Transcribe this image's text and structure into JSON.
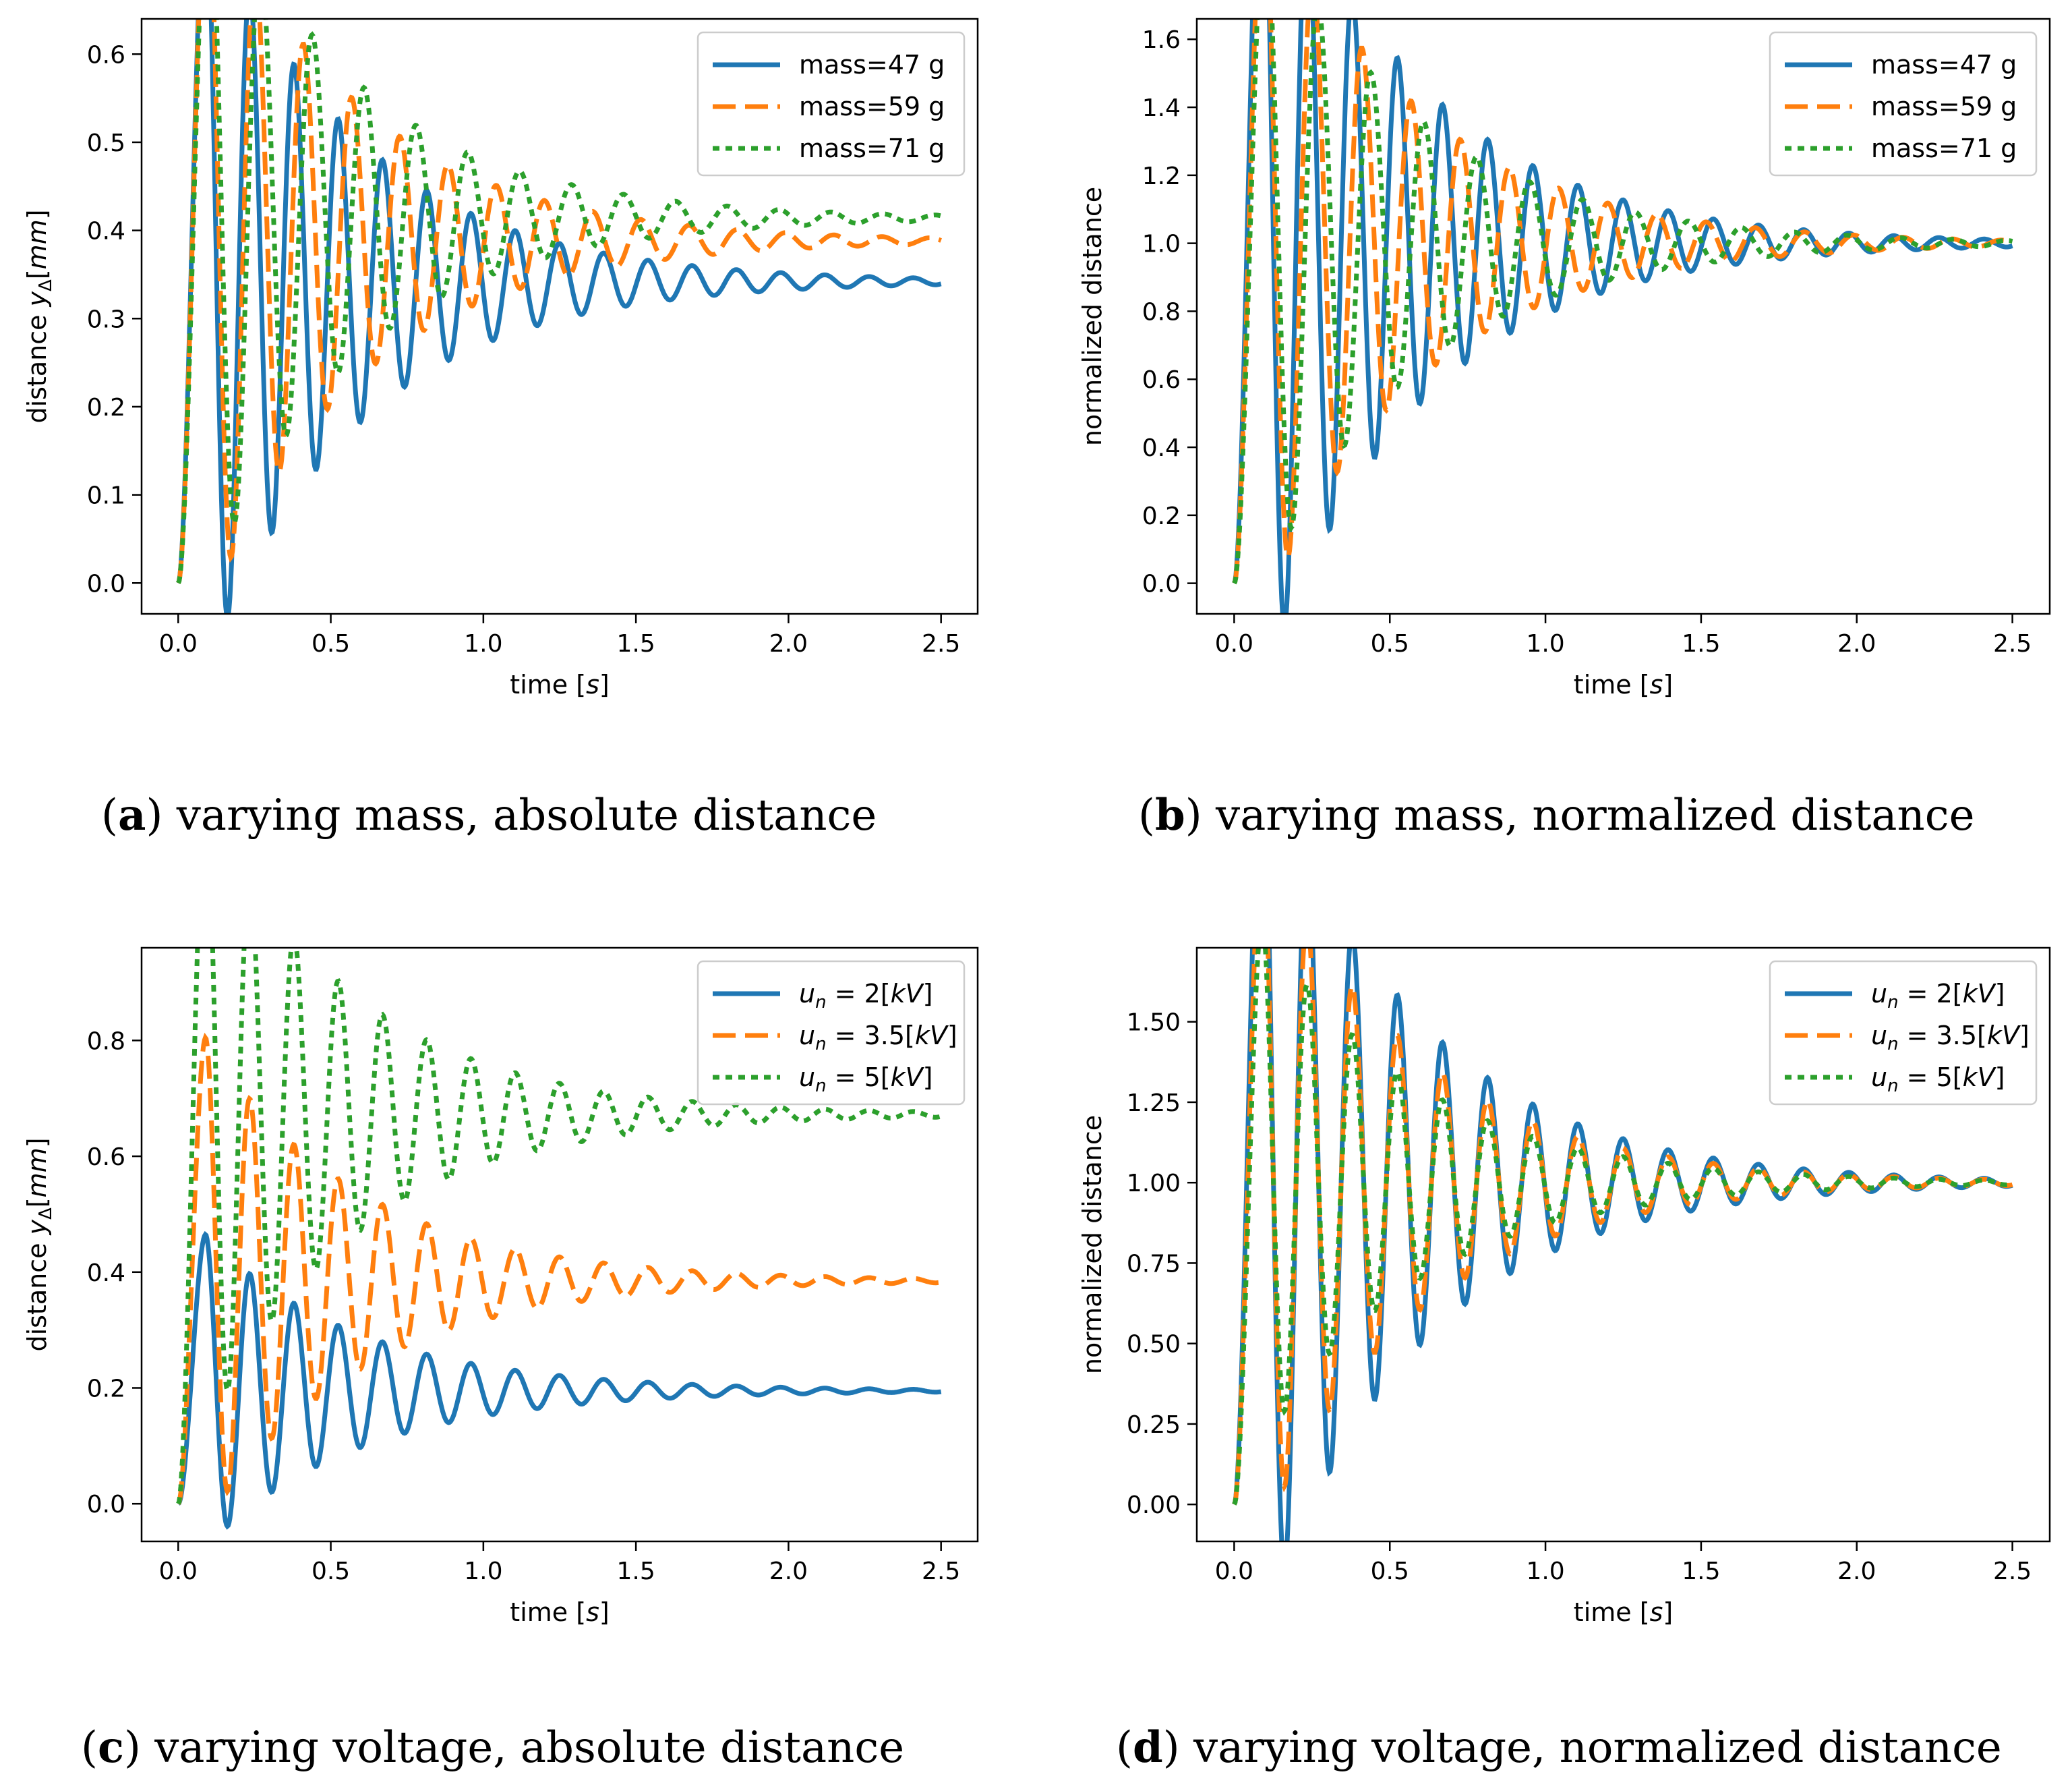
{
  "colors": {
    "blue": "#1f77b4",
    "orange": "#ff7f0e",
    "green": "#2ca02c"
  },
  "chart_data": [
    {
      "type": "line",
      "caption_letter": "a",
      "caption_text": " varying mass, absolute distance",
      "xlabel": "time [s]",
      "ylabel": "distance yΔ[mm]",
      "xlim": [
        -0.12,
        2.62
      ],
      "ylim": [
        -0.035,
        0.64
      ],
      "xticks": [
        0.0,
        0.5,
        1.0,
        1.5,
        2.0,
        2.5
      ],
      "xtick_labels": [
        "0.0",
        "0.5",
        "1.0",
        "1.5",
        "2.0",
        "2.5"
      ],
      "yticks": [
        0.0,
        0.1,
        0.2,
        0.3,
        0.4,
        0.5,
        0.6
      ],
      "ytick_labels": [
        "0.0",
        "0.1",
        "0.2",
        "0.3",
        "0.4",
        "0.5",
        "0.6"
      ],
      "legend_loc": "top-right",
      "series": [
        {
          "name": "mass=47 g",
          "color": "blue",
          "style": "solid",
          "model": {
            "final": 0.342,
            "amp": 0.44,
            "tau": 0.5,
            "period": 0.145,
            "peak": 0.09
          }
        },
        {
          "name": "mass=59 g",
          "color": "orange",
          "style": "dashed",
          "model": {
            "final": 0.388,
            "amp": 0.42,
            "tau": 0.5,
            "period": 0.158,
            "peak": 0.095
          }
        },
        {
          "name": "mass=71 g",
          "color": "green",
          "style": "dotted",
          "model": {
            "final": 0.414,
            "amp": 0.41,
            "tau": 0.5,
            "period": 0.17,
            "peak": 0.1
          }
        }
      ]
    },
    {
      "type": "line",
      "caption_letter": "b",
      "caption_text": " varying mass, normalized distance",
      "xlabel": "time [s]",
      "ylabel": "normalized distance",
      "xlim": [
        -0.12,
        2.62
      ],
      "ylim": [
        -0.09,
        1.66
      ],
      "xticks": [
        0.0,
        0.5,
        1.0,
        1.5,
        2.0,
        2.5
      ],
      "xtick_labels": [
        "0.0",
        "0.5",
        "1.0",
        "1.5",
        "2.0",
        "2.5"
      ],
      "yticks": [
        0.0,
        0.2,
        0.4,
        0.6,
        0.8,
        1.0,
        1.2,
        1.4,
        1.6
      ],
      "ytick_labels": [
        "0.0",
        "0.2",
        "0.4",
        "0.6",
        "0.8",
        "1.0",
        "1.2",
        "1.4",
        "1.6"
      ],
      "legend_loc": "top-right",
      "series": [
        {
          "name": "mass=47 g",
          "color": "blue",
          "style": "solid",
          "model": {
            "final": 1.0,
            "amp": 1.3,
            "tau": 0.5,
            "period": 0.145,
            "peak": 0.09
          }
        },
        {
          "name": "mass=59 g",
          "color": "orange",
          "style": "dashed",
          "model": {
            "final": 1.0,
            "amp": 1.08,
            "tau": 0.5,
            "period": 0.158,
            "peak": 0.095
          }
        },
        {
          "name": "mass=71 g",
          "color": "green",
          "style": "dotted",
          "model": {
            "final": 1.0,
            "amp": 0.99,
            "tau": 0.5,
            "period": 0.17,
            "peak": 0.1
          }
        }
      ]
    },
    {
      "type": "line",
      "caption_letter": "c",
      "caption_text": " varying voltage, absolute distance",
      "xlabel": "time [s]",
      "ylabel": "distance yΔ[mm]",
      "xlim": [
        -0.12,
        2.62
      ],
      "ylim": [
        -0.065,
        0.96
      ],
      "xticks": [
        0.0,
        0.5,
        1.0,
        1.5,
        2.0,
        2.5
      ],
      "xtick_labels": [
        "0.0",
        "0.5",
        "1.0",
        "1.5",
        "2.0",
        "2.5"
      ],
      "yticks": [
        0.0,
        0.2,
        0.4,
        0.6,
        0.8
      ],
      "ytick_labels": [
        "0.0",
        "0.2",
        "0.4",
        "0.6",
        "0.8"
      ],
      "legend_loc": "top-right",
      "series": [
        {
          "name": "u_n = 2[kV]",
          "color": "blue",
          "style": "solid",
          "model": {
            "final": 0.195,
            "amp": 0.27,
            "tau": 0.5,
            "period": 0.145,
            "peak": 0.09
          }
        },
        {
          "name": "u_n = 3.5[kV]",
          "color": "orange",
          "style": "dashed",
          "model": {
            "final": 0.385,
            "amp": 0.42,
            "tau": 0.5,
            "period": 0.145,
            "peak": 0.09
          }
        },
        {
          "name": "u_n = 5[kV]",
          "color": "green",
          "style": "dotted",
          "model": {
            "final": 0.672,
            "amp": 0.55,
            "tau": 0.5,
            "period": 0.145,
            "peak": 0.09
          }
        }
      ]
    },
    {
      "type": "line",
      "caption_letter": "d",
      "caption_text": " varying voltage, normalized distance",
      "xlabel": "time [s]",
      "ylabel": "normalized distance",
      "xlim": [
        -0.12,
        2.62
      ],
      "ylim": [
        -0.115,
        1.73
      ],
      "xticks": [
        0.0,
        0.5,
        1.0,
        1.5,
        2.0,
        2.5
      ],
      "xtick_labels": [
        "0.0",
        "0.5",
        "1.0",
        "1.5",
        "2.0",
        "2.5"
      ],
      "yticks": [
        0.0,
        0.25,
        0.5,
        0.75,
        1.0,
        1.25,
        1.5
      ],
      "ytick_labels": [
        "0.00",
        "0.25",
        "0.50",
        "0.75",
        "1.00",
        "1.25",
        "1.50"
      ],
      "legend_loc": "top-right",
      "series": [
        {
          "name": "u_n = 2[kV]",
          "color": "blue",
          "style": "solid",
          "model": {
            "final": 1.0,
            "amp": 1.39,
            "tau": 0.5,
            "period": 0.145,
            "peak": 0.09
          }
        },
        {
          "name": "u_n = 3.5[kV]",
          "color": "orange",
          "style": "dashed",
          "model": {
            "final": 1.0,
            "amp": 1.09,
            "tau": 0.5,
            "period": 0.145,
            "peak": 0.09
          }
        },
        {
          "name": "u_n = 5[kV]",
          "color": "green",
          "style": "dotted",
          "model": {
            "final": 1.0,
            "amp": 0.82,
            "tau": 0.5,
            "period": 0.145,
            "peak": 0.09
          }
        }
      ]
    }
  ]
}
